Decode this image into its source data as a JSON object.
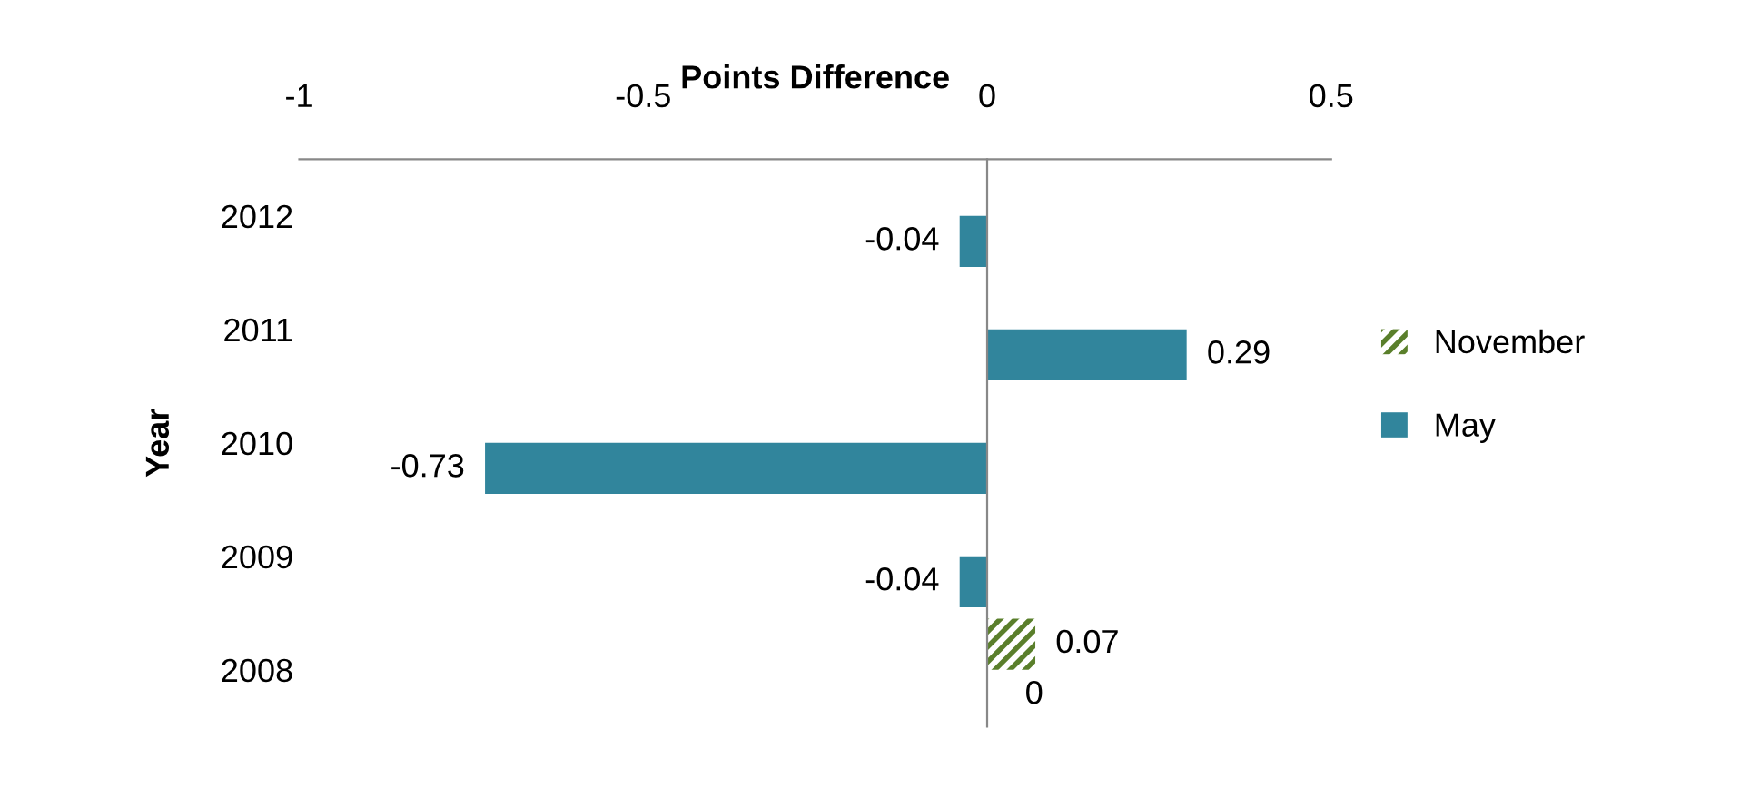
{
  "chart_data": {
    "type": "bar",
    "orientation": "horizontal",
    "xlabel": "Points Difference",
    "ylabel": "Year",
    "categories": [
      "2012",
      "2011",
      "2010",
      "2009",
      "2008"
    ],
    "series": [
      {
        "name": "November",
        "color": "#5a7f2b",
        "values": [
          null,
          null,
          null,
          null,
          0.07
        ]
      },
      {
        "name": "May",
        "color": "#31859c",
        "values": [
          -0.04,
          0.29,
          -0.73,
          -0.04,
          0
        ]
      }
    ],
    "xlim": [
      -1,
      0.5
    ],
    "xticks": [
      -1,
      -0.5,
      0,
      0.5
    ],
    "data_labels": true,
    "legend": "right"
  }
}
